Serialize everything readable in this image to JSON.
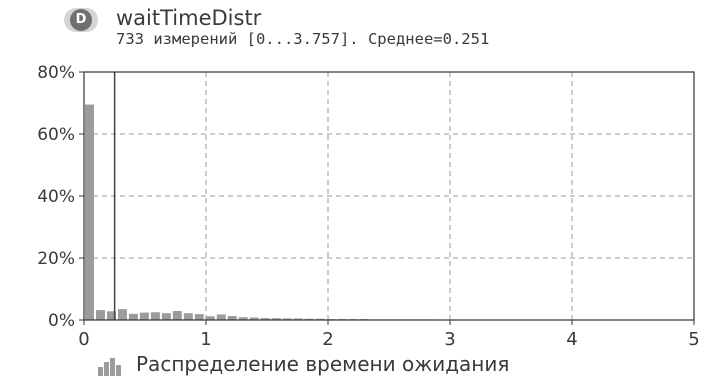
{
  "header": {
    "badge_letter": "D",
    "title": "waitTimeDistr",
    "subtitle": "733 измерений [0...3.757]. Среднее=0.251"
  },
  "legend": {
    "label": "Распределение времени ожидания"
  },
  "colors": {
    "bar": "#9c9c9c",
    "mean_line": "#444444",
    "grid": "#9a9a9a",
    "axis": "#333333",
    "text": "#3a3a3a"
  },
  "chart_data": {
    "type": "bar",
    "title": "waitTimeDistr",
    "subtitle": "733 измерений [0...3.757]. Среднее=0.251",
    "xlabel": "",
    "ylabel": "",
    "xlim": [
      0,
      5
    ],
    "ylim": [
      0,
      80
    ],
    "x_ticks": [
      0,
      1,
      2,
      3,
      4,
      5
    ],
    "y_ticks": [
      0,
      20,
      40,
      60,
      80
    ],
    "y_tick_labels": [
      "0%",
      "20%",
      "40%",
      "60%",
      "80%"
    ],
    "grid": true,
    "legend_position": "bottom",
    "bin_width": 0.09,
    "bins_start": [
      0,
      0.09,
      0.18,
      0.27,
      0.36,
      0.45,
      0.54,
      0.63,
      0.72,
      0.81,
      0.9,
      0.99,
      1.08,
      1.17,
      1.26,
      1.35,
      1.44,
      1.53,
      1.62,
      1.71,
      1.8,
      1.89,
      1.98,
      2.07,
      2.16,
      2.25,
      2.34,
      2.43,
      2.52,
      2.61,
      2.7,
      2.79,
      2.88,
      2.97,
      3.06,
      3.15,
      3.24,
      3.33,
      3.42,
      3.51,
      3.6,
      3.69
    ],
    "values": [
      69.5,
      3.2,
      2.8,
      3.5,
      2.0,
      2.4,
      2.5,
      2.2,
      2.9,
      2.2,
      1.9,
      1.2,
      1.8,
      1.3,
      0.9,
      0.8,
      0.6,
      0.6,
      0.5,
      0.5,
      0.4,
      0.4,
      0.3,
      0.3,
      0.3,
      0.3,
      0.2,
      0.2,
      0.2,
      0.2,
      0.2,
      0.2,
      0.1,
      0.1,
      0.1,
      0.1,
      0.1,
      0.1,
      0.1,
      0.1,
      0.1,
      0.1
    ],
    "series": [
      {
        "name": "Распределение времени ожидания"
      }
    ],
    "mean": 0.251,
    "count": 733,
    "range": [
      0,
      3.757
    ]
  }
}
